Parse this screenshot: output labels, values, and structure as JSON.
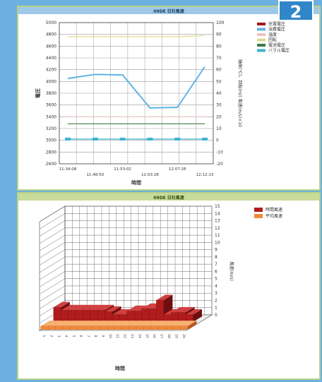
{
  "badge": "2",
  "chart_data": [
    {
      "type": "line",
      "title": "09DE 日社風速",
      "xlabel": "時間",
      "ylabel": "電圧",
      "y2label": "軸発(℃)、回転(Hz) 風速(m/s)×10",
      "ylim": [
        2600,
        5000
      ],
      "y2lim": [
        -20,
        100
      ],
      "yticks": [
        2600,
        2800,
        3000,
        3200,
        3400,
        3600,
        3800,
        4000,
        4200,
        4400,
        4600,
        4800,
        5000
      ],
      "y2ticks": [
        -20,
        -10,
        0,
        10,
        20,
        30,
        40,
        50,
        60,
        70,
        80,
        90,
        100
      ],
      "x_labels_top": [
        "11:34:08",
        "11:53:02",
        "12:07:28"
      ],
      "x_labels_bottom": [
        "11:48:50",
        "12:03:28",
        "12:12:13"
      ],
      "x": [
        0,
        1,
        2,
        3,
        4,
        5
      ],
      "grid": true,
      "legend_position": "right",
      "series": [
        {
          "name": "充電電圧",
          "color": "#a01818",
          "axis": "y2",
          "values": [
            null,
            null,
            null,
            null,
            null,
            null
          ]
        },
        {
          "name": "消費電圧",
          "color": "#5fb4e6",
          "axis": "y",
          "values": [
            4050,
            4120,
            4110,
            3550,
            3560,
            4250
          ]
        },
        {
          "name": "温度",
          "color": "#f0c0c0",
          "axis": "y",
          "values": [
            3400,
            3400,
            3400,
            3400,
            3400,
            3400
          ]
        },
        {
          "name": "回転",
          "color": "#e0d890",
          "axis": "y2",
          "values": [
            88,
            88,
            88,
            88,
            88,
            89
          ]
        },
        {
          "name": "電池電圧",
          "color": "#3c7a4a",
          "axis": "y",
          "values": [
            3280,
            3280,
            3280,
            3280,
            3280,
            3280
          ]
        },
        {
          "name": "バラル電圧",
          "color": "#3cb4d0",
          "axis": "y",
          "values": [
            3020,
            3020,
            3020,
            3020,
            3020,
            3020
          ]
        }
      ]
    },
    {
      "type": "bar",
      "title": "09DE 日社風速",
      "xlabel": "時間",
      "ylabel": "風速(m/s)",
      "ylim": [
        0,
        15
      ],
      "yticks": [
        0,
        1,
        2,
        3,
        4,
        5,
        6,
        7,
        8,
        9,
        10,
        11,
        12,
        13,
        14,
        15
      ],
      "legend_position": "top-right",
      "grid": true,
      "categories": [
        "1",
        "2",
        "3",
        "4",
        "5",
        "6",
        "7",
        "8",
        "9",
        "10",
        "11",
        "12",
        "13",
        "14",
        "15",
        "16",
        "17",
        "18",
        "19",
        "20"
      ],
      "series": [
        {
          "name": "時間風速",
          "color": "#b01c1c",
          "values": [
            2,
            1.6,
            1.6,
            1.6,
            1.6,
            1.6,
            1.6,
            1.4,
            1,
            1,
            1.5,
            1.5,
            1.8,
            1.8,
            3,
            1,
            1.3,
            1.3,
            1,
            0
          ]
        },
        {
          "name": "平均風速",
          "color": "#f08a3a",
          "values": [
            0.5,
            0.5,
            0.5,
            0.5,
            0.5,
            0.5,
            0.5,
            0.5,
            0.5,
            0.5,
            0.5,
            0.5,
            0.5,
            0.5,
            0.5,
            0.5,
            0.5,
            0.5,
            0.5,
            0.5
          ]
        }
      ]
    }
  ]
}
